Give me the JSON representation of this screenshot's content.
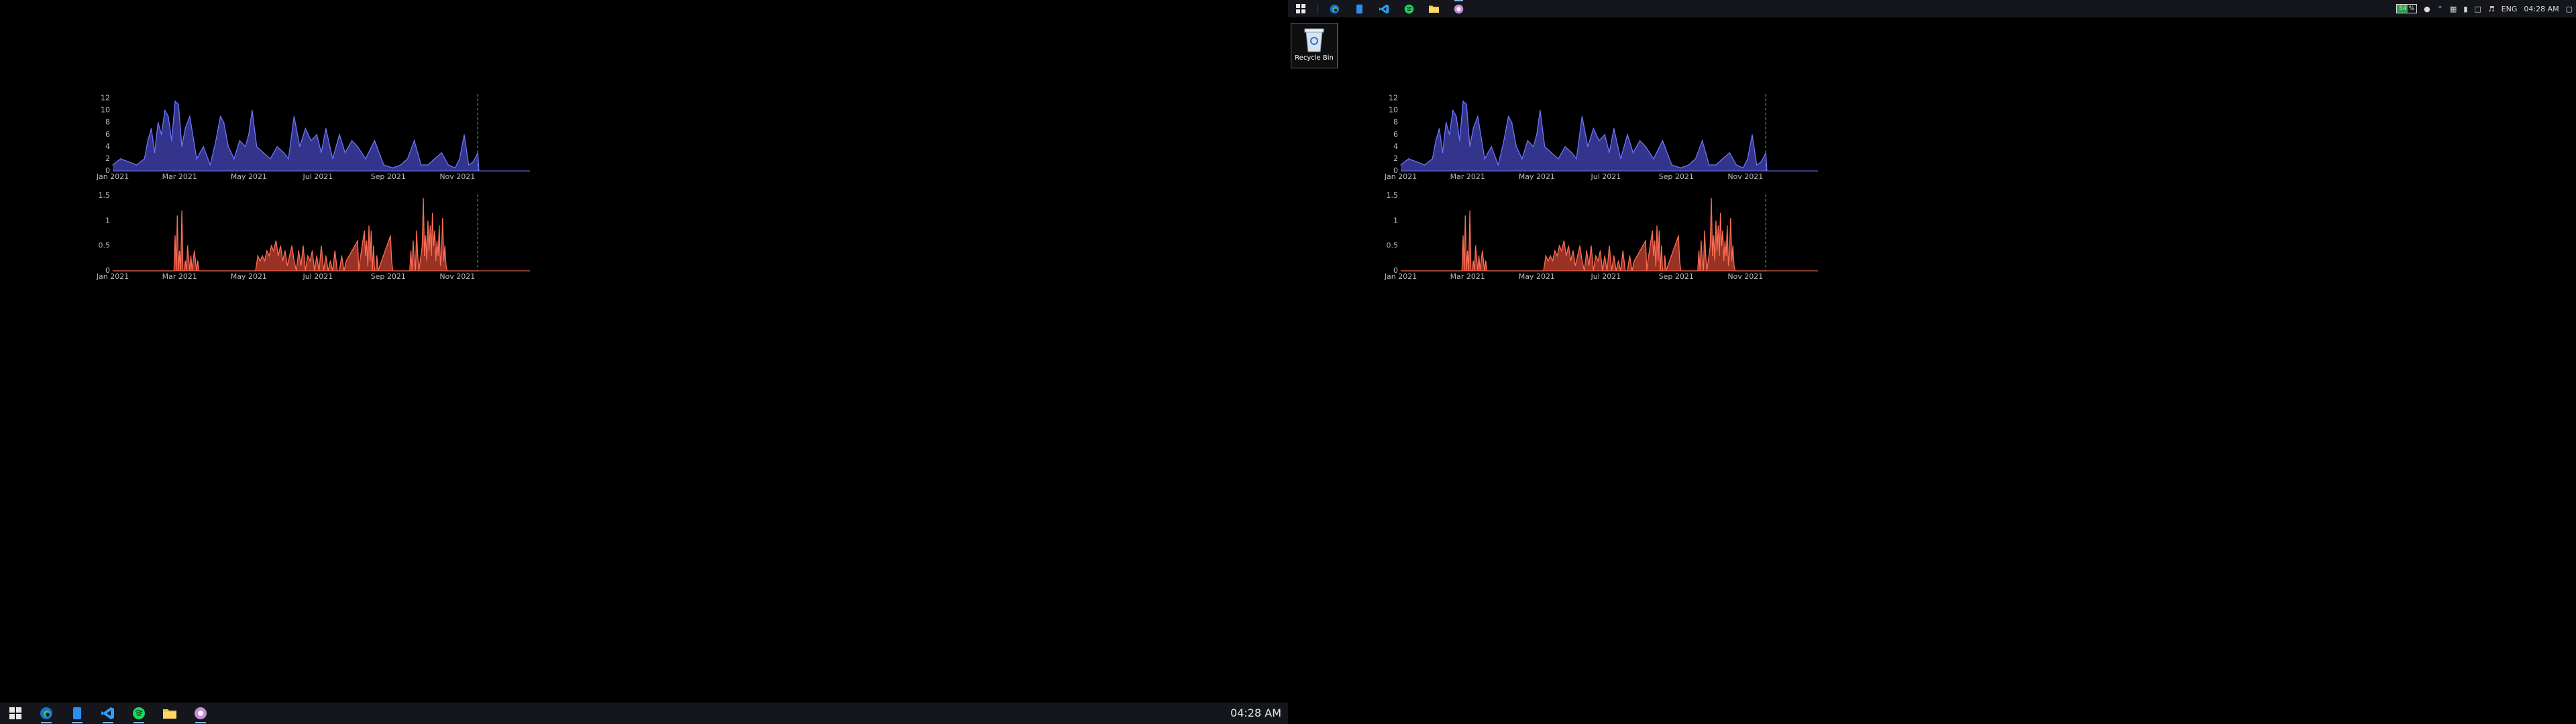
{
  "left_monitor": {
    "taskbar": {
      "clock": "04:28 AM",
      "apps": [
        {
          "name": "edge-icon",
          "active": true
        },
        {
          "name": "phone-icon",
          "active": true
        },
        {
          "name": "vscode-icon",
          "active": true
        },
        {
          "name": "spotify-icon",
          "active": true
        },
        {
          "name": "file-explorer-icon",
          "active": false
        },
        {
          "name": "obs-icon",
          "active": true
        }
      ]
    }
  },
  "right_monitor": {
    "taskbar": {
      "clock": "04:28 AM",
      "language": "ENG",
      "battery": "54 %",
      "apps": [
        {
          "name": "edge-icon",
          "active": false
        },
        {
          "name": "phone-icon",
          "active": false
        },
        {
          "name": "vscode-icon",
          "active": false
        },
        {
          "name": "spotify-icon",
          "active": false
        },
        {
          "name": "file-explorer-icon",
          "active": false
        },
        {
          "name": "obs-icon",
          "active": true
        }
      ]
    },
    "desktop_icons": [
      {
        "label": "Recycle Bin",
        "icon": "recycle-bin-icon"
      }
    ]
  },
  "colors": {
    "series_blue": "#6f73ff",
    "series_blue_fill": "#3b3ea3",
    "series_red": "#ff6d55",
    "series_red_fill": "#b33b2a",
    "marker_line": "#1e8c2c"
  },
  "chart_data": [
    {
      "type": "area",
      "x_start": "2021-01-01",
      "x_end": "2022-01-04",
      "ylim": [
        0,
        12.5
      ],
      "y_ticks": [
        "0",
        "2",
        "4",
        "6",
        "8",
        "10",
        "12"
      ],
      "y_tick_values": [
        0,
        2,
        4,
        6,
        8,
        10,
        12
      ],
      "x_ticks": [
        "Jan 2021",
        "Mar 2021",
        "May 2021",
        "Jul 2021",
        "Sep 2021",
        "Nov 2021"
      ],
      "x_tick_dates": [
        "2021-01-01",
        "2021-03-01",
        "2021-05-01",
        "2021-07-01",
        "2021-09-01",
        "2021-11-01"
      ],
      "marker_date": "2021-11-19",
      "series": [
        {
          "x": [
            "2021-01-01",
            "2021-01-08",
            "2021-01-15",
            "2021-01-22",
            "2021-01-29",
            "2021-02-01",
            "2021-02-04",
            "2021-02-07",
            "2021-02-10",
            "2021-02-13",
            "2021-02-16",
            "2021-02-19",
            "2021-02-22",
            "2021-02-25",
            "2021-02-28",
            "2021-03-03",
            "2021-03-06",
            "2021-03-10",
            "2021-03-16",
            "2021-03-22",
            "2021-03-28",
            "2021-04-02",
            "2021-04-06",
            "2021-04-09",
            "2021-04-13",
            "2021-04-18",
            "2021-04-23",
            "2021-04-28",
            "2021-05-01",
            "2021-05-04",
            "2021-05-08",
            "2021-05-14",
            "2021-05-20",
            "2021-05-26",
            "2021-06-01",
            "2021-06-05",
            "2021-06-10",
            "2021-06-15",
            "2021-06-20",
            "2021-06-25",
            "2021-06-30",
            "2021-07-04",
            "2021-07-08",
            "2021-07-14",
            "2021-07-20",
            "2021-07-25",
            "2021-07-31",
            "2021-08-05",
            "2021-08-12",
            "2021-08-20",
            "2021-08-28",
            "2021-09-05",
            "2021-09-12",
            "2021-09-18",
            "2021-09-24",
            "2021-09-30",
            "2021-10-06",
            "2021-10-12",
            "2021-10-18",
            "2021-10-24",
            "2021-10-30",
            "2021-11-03",
            "2021-11-07",
            "2021-11-11",
            "2021-11-15",
            "2021-11-19",
            "2021-11-20"
          ],
          "y": [
            1,
            2,
            1.5,
            1,
            2,
            5,
            7,
            3,
            8,
            6,
            10,
            9,
            5,
            11.5,
            11,
            4,
            7,
            9,
            2,
            4,
            1,
            5,
            9,
            8,
            4,
            2,
            5,
            4,
            6,
            10,
            4,
            3,
            2,
            4,
            3,
            2,
            9,
            4,
            7,
            5,
            6,
            3,
            7,
            2,
            6,
            3,
            5,
            4,
            2,
            5,
            1,
            0.5,
            1,
            2,
            5,
            1,
            1,
            2,
            3,
            1,
            0.5,
            2,
            6,
            1,
            1.5,
            3,
            0
          ]
        }
      ]
    },
    {
      "type": "area",
      "x_start": "2021-01-01",
      "x_end": "2022-01-04",
      "ylim": [
        0,
        1.5
      ],
      "y_ticks": [
        "0",
        "0.5",
        "1",
        "1.5"
      ],
      "y_tick_values": [
        0,
        0.5,
        1,
        1.5
      ],
      "x_ticks": [
        "Jan 2021",
        "Mar 2021",
        "May 2021",
        "Jul 2021",
        "Sep 2021",
        "Nov 2021"
      ],
      "x_tick_dates": [
        "2021-01-01",
        "2021-03-01",
        "2021-05-01",
        "2021-07-01",
        "2021-09-01",
        "2021-11-01"
      ],
      "marker_date": "2021-11-19",
      "series": [
        {
          "x": [
            "2021-01-01",
            "2021-02-24",
            "2021-02-25",
            "2021-02-26",
            "2021-02-27",
            "2021-02-28",
            "2021-03-01",
            "2021-03-02",
            "2021-03-03",
            "2021-03-04",
            "2021-03-05",
            "2021-03-06",
            "2021-03-07",
            "2021-03-08",
            "2021-03-10",
            "2021-03-11",
            "2021-03-12",
            "2021-03-14",
            "2021-03-16",
            "2021-03-17",
            "2021-03-18",
            "2021-05-07",
            "2021-05-09",
            "2021-05-11",
            "2021-05-13",
            "2021-05-15",
            "2021-05-17",
            "2021-05-19",
            "2021-05-21",
            "2021-05-23",
            "2021-05-25",
            "2021-05-27",
            "2021-05-29",
            "2021-05-31",
            "2021-06-02",
            "2021-06-04",
            "2021-06-06",
            "2021-06-08",
            "2021-06-10",
            "2021-06-12",
            "2021-06-14",
            "2021-06-16",
            "2021-06-18",
            "2021-06-20",
            "2021-06-22",
            "2021-06-24",
            "2021-06-26",
            "2021-06-28",
            "2021-06-30",
            "2021-07-02",
            "2021-07-04",
            "2021-07-06",
            "2021-07-08",
            "2021-07-10",
            "2021-07-12",
            "2021-07-14",
            "2021-07-16",
            "2021-07-18",
            "2021-07-20",
            "2021-07-22",
            "2021-07-24",
            "2021-07-26",
            "2021-08-05",
            "2021-08-06",
            "2021-08-07",
            "2021-08-11",
            "2021-08-12",
            "2021-08-13",
            "2021-08-14",
            "2021-08-15",
            "2021-08-16",
            "2021-08-17",
            "2021-08-18",
            "2021-08-19",
            "2021-08-20",
            "2021-08-21",
            "2021-08-22",
            "2021-08-23",
            "2021-09-03",
            "2021-09-04",
            "2021-09-05",
            "2021-09-20",
            "2021-09-21",
            "2021-09-22",
            "2021-09-23",
            "2021-09-24",
            "2021-09-25",
            "2021-09-26",
            "2021-09-27",
            "2021-09-28",
            "2021-10-01",
            "2021-10-02",
            "2021-10-03",
            "2021-10-04",
            "2021-10-05",
            "2021-10-06",
            "2021-10-07",
            "2021-10-08",
            "2021-10-09",
            "2021-10-10",
            "2021-10-11",
            "2021-10-12",
            "2021-10-13",
            "2021-10-14",
            "2021-10-15",
            "2021-10-16",
            "2021-10-17",
            "2021-10-18",
            "2021-10-19",
            "2021-10-20",
            "2021-10-21",
            "2021-10-22",
            "2021-10-23",
            "2021-10-24",
            "2021-10-25",
            "2021-10-26",
            "2021-10-27",
            "2021-10-28",
            "2021-11-20"
          ],
          "y": [
            0,
            0,
            0.7,
            0,
            1.1,
            0,
            0.4,
            0,
            1.2,
            0,
            0,
            0.2,
            0,
            0.5,
            0,
            0.3,
            0,
            0.4,
            0,
            0.2,
            0,
            0,
            0.3,
            0.2,
            0.3,
            0.2,
            0.4,
            0.3,
            0.5,
            0.4,
            0.6,
            0.3,
            0.5,
            0.2,
            0.4,
            0.1,
            0.3,
            0.5,
            0.2,
            0,
            0.4,
            0.1,
            0.5,
            0,
            0.3,
            0.2,
            0.4,
            0,
            0.3,
            0,
            0.5,
            0,
            0.3,
            0,
            0.2,
            0,
            0.4,
            0,
            0,
            0.3,
            0,
            0.2,
            0.6,
            0,
            0.2,
            0.8,
            0.3,
            0.6,
            0.1,
            0.9,
            0.2,
            0.8,
            0,
            0.5,
            0,
            0,
            0.3,
            0,
            0.7,
            0.2,
            0,
            0,
            0.4,
            0,
            0.6,
            0.2,
            0,
            0.8,
            0.3,
            0,
            0.5,
            1.45,
            0.3,
            0.7,
            0.2,
            1.0,
            0.4,
            0.9,
            0.3,
            1.15,
            0.5,
            0.8,
            0.2,
            0.6,
            0.3,
            0.9,
            0.1,
            0.4,
            1.05,
            0.2,
            0.5,
            0.1,
            0,
            0,
            0,
            0,
            0,
            0,
            0
          ]
        }
      ]
    }
  ]
}
